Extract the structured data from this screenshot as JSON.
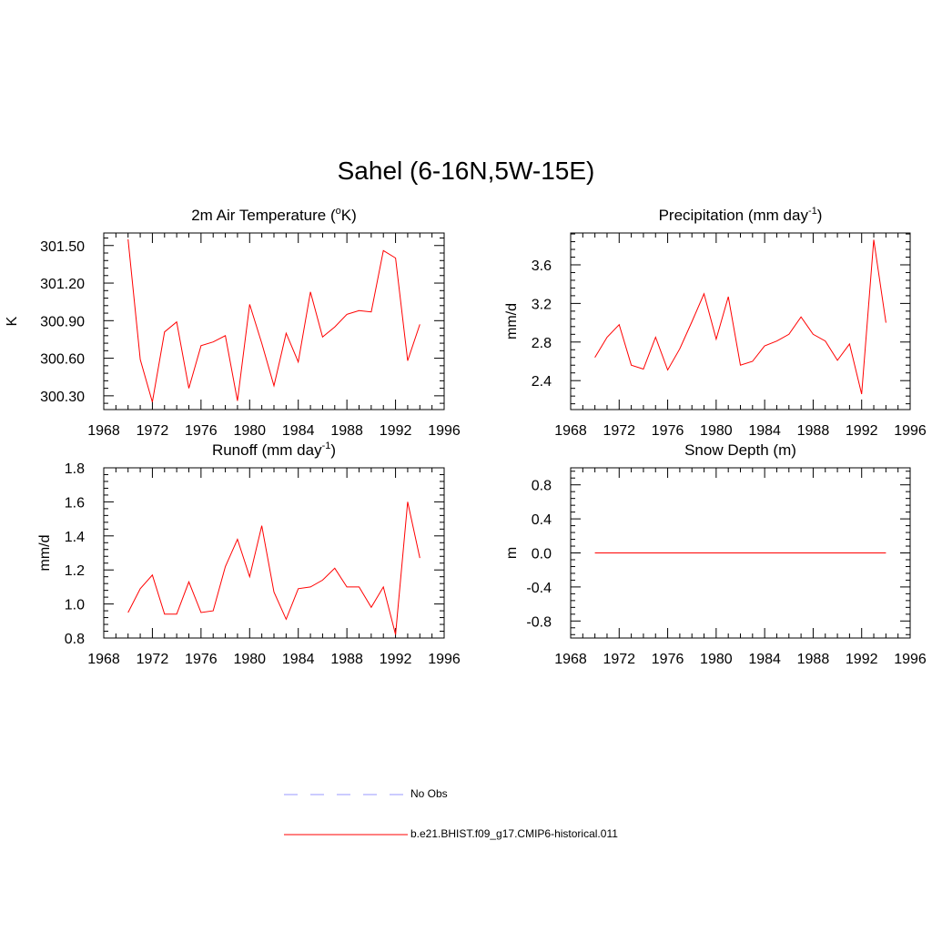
{
  "figure": {
    "title": "Sahel (6-16N,5W-15E)"
  },
  "legend": [
    {
      "label": "No Obs",
      "color": "#9999ff",
      "style": "dashed"
    },
    {
      "label": "b.e21.BHIST.f09_g17.CMIP6-historical.011",
      "color": "#ff0000",
      "style": "solid"
    }
  ],
  "chart_data": [
    {
      "type": "line",
      "title": "2m Air Temperature (°K)",
      "ylabel": "K",
      "xlim": [
        1968,
        1996
      ],
      "ylim": [
        300.19,
        301.6
      ],
      "xticks": [
        "1968",
        "1972",
        "1976",
        "1980",
        "1984",
        "1988",
        "1992",
        "1996"
      ],
      "yticks": [
        "300.30",
        "300.60",
        "300.90",
        "301.20",
        "301.50"
      ],
      "x": [
        1970,
        1971,
        1972,
        1973,
        1974,
        1975,
        1976,
        1977,
        1978,
        1979,
        1980,
        1981,
        1982,
        1983,
        1984,
        1985,
        1986,
        1987,
        1988,
        1989,
        1990,
        1991,
        1992,
        1993,
        1994
      ],
      "series": [
        {
          "name": "b.e21.BHIST.f09_g17.CMIP6-historical.011",
          "color": "#ff0000",
          "values": [
            301.55,
            300.59,
            300.25,
            300.81,
            300.89,
            300.36,
            300.7,
            300.73,
            300.78,
            300.26,
            301.03,
            300.72,
            300.38,
            300.8,
            300.57,
            301.13,
            300.77,
            300.85,
            300.95,
            300.98,
            300.97,
            301.46,
            301.4,
            300.58,
            300.87
          ]
        }
      ]
    },
    {
      "type": "line",
      "title": "Precipitation (mm day-1)",
      "ylabel": "mm/d",
      "xlim": [
        1968,
        1996
      ],
      "ylim": [
        2.1,
        3.93
      ],
      "xticks": [
        "1968",
        "1972",
        "1976",
        "1980",
        "1984",
        "1988",
        "1992",
        "1996"
      ],
      "yticks": [
        "2.4",
        "2.8",
        "3.2",
        "3.6"
      ],
      "x": [
        1970,
        1971,
        1972,
        1973,
        1974,
        1975,
        1976,
        1977,
        1978,
        1979,
        1980,
        1981,
        1982,
        1983,
        1984,
        1985,
        1986,
        1987,
        1988,
        1989,
        1990,
        1991,
        1992,
        1993,
        1994
      ],
      "series": [
        {
          "name": "b.e21.BHIST.f09_g17.CMIP6-historical.011",
          "color": "#ff0000",
          "values": [
            2.64,
            2.85,
            2.98,
            2.56,
            2.52,
            2.85,
            2.51,
            2.73,
            3.01,
            3.3,
            2.83,
            3.27,
            2.56,
            2.6,
            2.76,
            2.81,
            2.88,
            3.06,
            2.88,
            2.81,
            2.61,
            2.78,
            2.26,
            3.86,
            3.0
          ]
        }
      ]
    },
    {
      "type": "line",
      "title": "Runoff (mm day-1)",
      "ylabel": "mm/d",
      "xlim": [
        1968,
        1996
      ],
      "ylim": [
        0.8,
        1.8
      ],
      "xticks": [
        "1968",
        "1972",
        "1976",
        "1980",
        "1984",
        "1988",
        "1992",
        "1996"
      ],
      "yticks": [
        "0.8",
        "1.0",
        "1.2",
        "1.4",
        "1.6",
        "1.8"
      ],
      "x": [
        1970,
        1971,
        1972,
        1973,
        1974,
        1975,
        1976,
        1977,
        1978,
        1979,
        1980,
        1981,
        1982,
        1983,
        1984,
        1985,
        1986,
        1987,
        1988,
        1989,
        1990,
        1991,
        1992,
        1993,
        1994
      ],
      "series": [
        {
          "name": "b.e21.BHIST.f09_g17.CMIP6-historical.011",
          "color": "#ff0000",
          "values": [
            0.95,
            1.09,
            1.17,
            0.94,
            0.94,
            1.13,
            0.95,
            0.96,
            1.22,
            1.38,
            1.16,
            1.46,
            1.07,
            0.91,
            1.09,
            1.1,
            1.14,
            1.21,
            1.1,
            1.1,
            0.98,
            1.1,
            0.82,
            1.6,
            1.27
          ]
        }
      ]
    },
    {
      "type": "line",
      "title": "Snow Depth (m)",
      "ylabel": "m",
      "xlim": [
        1968,
        1996
      ],
      "ylim": [
        -1.0,
        1.0
      ],
      "xticks": [
        "1968",
        "1972",
        "1976",
        "1980",
        "1984",
        "1988",
        "1992",
        "1996"
      ],
      "yticks": [
        "-0.8",
        "-0.4",
        "0.0",
        "0.4",
        "0.8"
      ],
      "x": [
        1970,
        1971,
        1972,
        1973,
        1974,
        1975,
        1976,
        1977,
        1978,
        1979,
        1980,
        1981,
        1982,
        1983,
        1984,
        1985,
        1986,
        1987,
        1988,
        1989,
        1990,
        1991,
        1992,
        1993,
        1994
      ],
      "series": [
        {
          "name": "b.e21.BHIST.f09_g17.CMIP6-historical.011",
          "color": "#ff0000",
          "values": [
            0,
            0,
            0,
            0,
            0,
            0,
            0,
            0,
            0,
            0,
            0,
            0,
            0,
            0,
            0,
            0,
            0,
            0,
            0,
            0,
            0,
            0,
            0,
            0,
            0
          ]
        }
      ]
    }
  ]
}
